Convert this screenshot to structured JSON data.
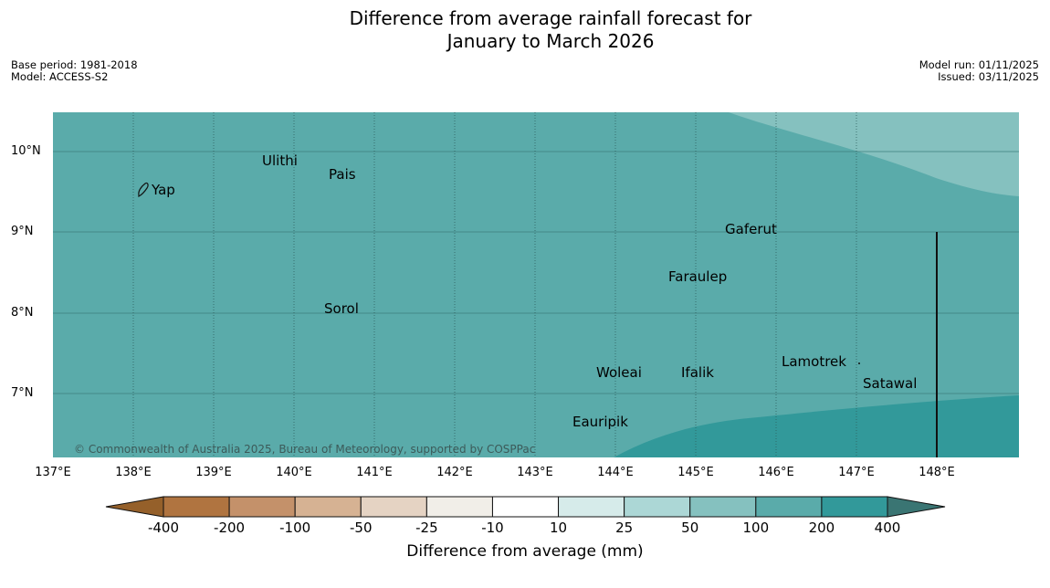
{
  "title_line1": "Difference from average rainfall forecast for",
  "title_line2": "January to March 2026",
  "base_period": "Base period: 1981-2018",
  "model": "Model: ACCESS-S2",
  "model_run": "Model run: 01/11/2025",
  "issued": "Issued: 03/11/2025",
  "latitude_labels": [
    "10°N",
    "9°N",
    "8°N",
    "7°N"
  ],
  "longitude_labels": [
    "137°E",
    "138°E",
    "139°E",
    "140°E",
    "141°E",
    "142°E",
    "143°E",
    "144°E",
    "145°E",
    "146°E",
    "147°E",
    "148°E"
  ],
  "places": {
    "yap": "Yap",
    "ulithi": "Ulithi",
    "pais": "Pais",
    "gaferut": "Gaferut",
    "faraulep": "Faraulep",
    "sorol": "Sorol",
    "lamotrek": "Lamotrek",
    "woleai": "Woleai",
    "ifalik": "Ifalik",
    "satawal": "Satawal",
    "eauripik": "Eauripik"
  },
  "copyright": "© Commonwealth of Australia 2025, Bureau of Meteorology, supported by COSPPac",
  "colorbar": {
    "title": "Difference from average (mm)",
    "labels": [
      "-400",
      "-200",
      "-100",
      "-50",
      "-25",
      "-10",
      "10",
      "25",
      "50",
      "100",
      "200",
      "400"
    ],
    "colors": {
      "below_min": "#95602a",
      "bins": [
        "#b07440",
        "#c4916a",
        "#d6b293",
        "#e5d3c3",
        "#f1eee8",
        "#ffffff",
        "#d6ebea",
        "#acd7d6",
        "#85c1bf",
        "#5aabaa",
        "#32999a"
      ],
      "above_max": "#3a7573"
    }
  },
  "map_colors": {
    "background": "#5aabaa",
    "band_50_100": "#85c1bf",
    "band_200_400": "#32999a"
  }
}
